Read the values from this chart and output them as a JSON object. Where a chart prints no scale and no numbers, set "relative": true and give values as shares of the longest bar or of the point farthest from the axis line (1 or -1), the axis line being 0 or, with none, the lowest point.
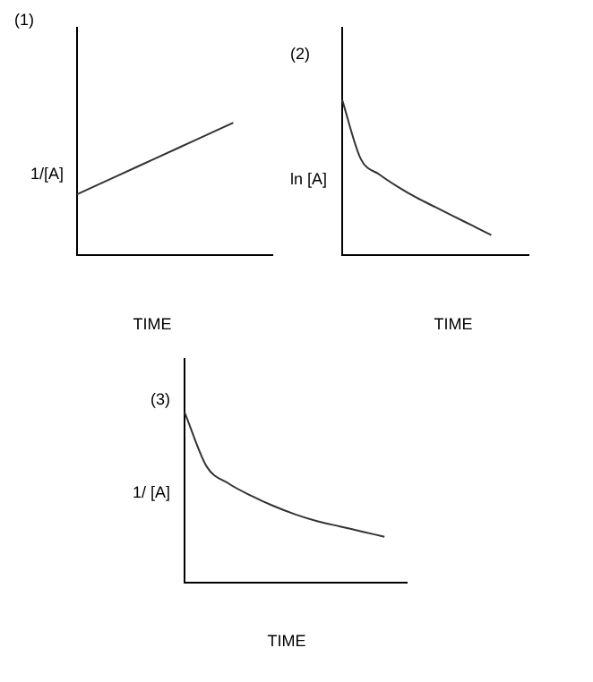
{
  "chart_data": [
    {
      "type": "line",
      "relative": true,
      "title": "(1)",
      "ylabel": "1/[A]",
      "xlabel": "TIME",
      "categories": [
        null,
        null,
        null,
        null,
        null,
        null
      ],
      "series": [
        {
          "color": "#333333",
          "values": [
            0.46,
            0.595,
            0.73,
            0.865,
            1,
            null
          ]
        }
      ],
      "marker": "none",
      "grid": false,
      "legend": false
    },
    {
      "type": "line",
      "relative": true,
      "title": "(2)",
      "ylabel": "ln [A]",
      "xlabel": "TIME",
      "categories": [
        null,
        null,
        null,
        null,
        null,
        null,
        null,
        null,
        null,
        null,
        null
      ],
      "series": [
        {
          "color": "#333333",
          "values": [
            1,
            0.62,
            0.52,
            0.44,
            0.37,
            0.31,
            0.25,
            0.19,
            0.13,
            null,
            null
          ]
        }
      ],
      "marker": "none",
      "grid": false,
      "legend": false
    },
    {
      "type": "line",
      "relative": true,
      "title": "(3)",
      "ylabel": "1/ [A]",
      "xlabel": "TIME",
      "categories": [
        null,
        null,
        null,
        null,
        null,
        null,
        null,
        null,
        null,
        null,
        null
      ],
      "series": [
        {
          "color": "#333333",
          "values": [
            1,
            0.68,
            0.58,
            0.51,
            0.45,
            0.4,
            0.36,
            0.33,
            0.3,
            0.27,
            null
          ]
        }
      ],
      "marker": "none",
      "grid": false,
      "legend": false
    }
  ]
}
